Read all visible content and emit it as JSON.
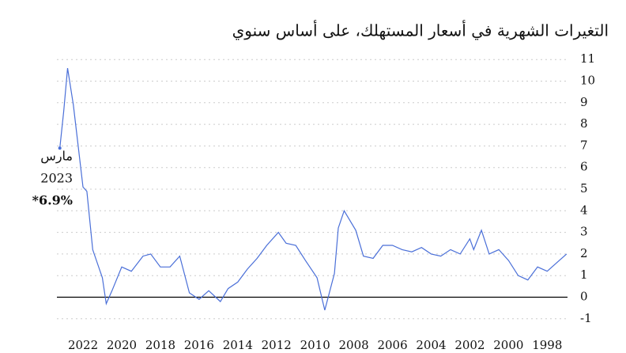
{
  "chart_data": {
    "type": "line",
    "subtitle": "التغيرات الشهرية في أسعار المستهلك، على أساس سنوي",
    "x": [
      1997.0,
      1997.5,
      1998.0,
      1998.5,
      1999.0,
      1999.5,
      2000.0,
      2000.5,
      2001.0,
      2001.4,
      2001.8,
      2002.0,
      2002.5,
      2003.0,
      2003.5,
      2004.0,
      2004.5,
      2005.0,
      2005.5,
      2006.0,
      2006.5,
      2007.0,
      2007.5,
      2007.9,
      2008.5,
      2008.8,
      2009.0,
      2009.5,
      2009.9,
      2010.5,
      2011.0,
      2011.5,
      2011.9,
      2012.5,
      2013.0,
      2013.5,
      2014.0,
      2014.5,
      2014.9,
      2015.5,
      2016.0,
      2016.5,
      2017.0,
      2017.5,
      2018.0,
      2018.5,
      2018.9,
      2019.5,
      2020.0,
      2020.5,
      2020.8,
      2021.0,
      2021.5,
      2021.8,
      2022.0,
      2022.5,
      2022.8,
      2023.0,
      2023.2
    ],
    "series": [
      {
        "color": "#4a6fd8",
        "values": [
          2.0,
          1.6,
          1.2,
          1.4,
          0.8,
          1.0,
          1.7,
          2.2,
          2.0,
          3.1,
          2.2,
          2.7,
          2.0,
          2.2,
          1.9,
          2.0,
          2.3,
          2.1,
          2.2,
          2.4,
          2.4,
          1.8,
          1.9,
          3.1,
          4.0,
          3.2,
          1.1,
          -0.6,
          0.9,
          1.7,
          2.4,
          2.5,
          3.0,
          2.4,
          1.8,
          1.3,
          0.7,
          0.4,
          -0.2,
          0.3,
          -0.1,
          0.2,
          1.9,
          1.4,
          1.4,
          2.0,
          1.9,
          1.2,
          1.4,
          0.3,
          -0.3,
          0.9,
          2.2,
          4.9,
          5.1,
          8.9,
          10.6,
          8.6,
          6.9
        ]
      }
    ],
    "xlim": [
      2023.35,
      1996.95
    ],
    "xticks": [
      2022,
      2020,
      2018,
      2016,
      2014,
      2012,
      2010,
      2008,
      2006,
      2004,
      2002,
      2000,
      1998
    ],
    "ylim": [
      -1.3,
      11.3
    ],
    "yticks": [
      -1,
      0,
      1,
      2,
      3,
      4,
      5,
      6,
      7,
      8,
      9,
      10,
      11
    ],
    "grid": true,
    "annotation": {
      "month": "مارس",
      "year": "2023",
      "value_label": "*6.9%"
    }
  }
}
